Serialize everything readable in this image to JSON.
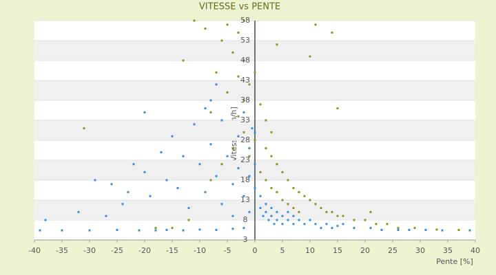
{
  "chart_data": {
    "type": "scatter",
    "title": "VITESSE vs PENTE",
    "x_label": "Pente [%]",
    "y_label": "Vitesse [km/h]",
    "xlim": [
      -40,
      40
    ],
    "xticks": [
      -40,
      -35,
      -30,
      -25,
      -20,
      -15,
      -10,
      -5,
      0,
      5,
      10,
      15,
      20,
      25,
      30,
      35,
      40
    ],
    "ylim": [
      3,
      58
    ],
    "yticks": [
      3,
      8,
      13,
      18,
      23,
      28,
      33,
      38,
      43,
      48,
      53,
      58
    ],
    "grid": true,
    "series": [
      {
        "color": "#3a8ee0",
        "x": [
          -39,
          -35,
          -30,
          -25,
          -21,
          -18,
          -16,
          -13,
          -10,
          -7,
          -4,
          -2,
          -38,
          -32,
          -29,
          -26,
          -24,
          -22,
          -20,
          -19,
          -17,
          -16,
          -15,
          -14,
          -13,
          -12,
          -11,
          -10,
          -9,
          -8,
          -8,
          -7,
          -6,
          -6,
          -5,
          -4,
          -4,
          -3,
          -3,
          -2,
          -2,
          -1,
          -1,
          -1,
          0,
          0,
          0,
          -0.5,
          1,
          1,
          1.5,
          2,
          2,
          2.5,
          3,
          3,
          3.5,
          4,
          4,
          5,
          5,
          6,
          6,
          7,
          7,
          8,
          9,
          10,
          11,
          12,
          13,
          14,
          15,
          16,
          18,
          21,
          23,
          26,
          28,
          31,
          34,
          39,
          -20,
          -23,
          -27,
          -5,
          -7,
          -9
        ],
        "values": [
          5.4,
          5.4,
          5.4,
          5.5,
          5.4,
          5.4,
          5.5,
          5.4,
          5.6,
          5.5,
          5.8,
          6,
          8,
          10,
          18,
          17,
          12,
          22,
          20,
          14,
          25,
          18,
          29,
          16,
          24,
          11,
          32,
          22,
          15,
          38,
          27,
          19,
          12,
          33,
          24,
          17,
          9,
          29,
          21,
          14,
          35,
          26,
          19,
          10,
          30,
          22,
          16,
          31,
          14,
          11,
          9,
          12,
          10,
          8,
          11,
          9,
          7,
          10,
          8,
          9,
          7,
          8,
          10,
          7,
          9,
          8,
          7,
          8,
          7,
          6,
          7,
          6,
          6.5,
          7,
          6,
          6,
          5.5,
          5.5,
          5.5,
          5.5,
          5.4,
          5.4,
          35,
          15,
          9,
          40,
          42,
          36
        ]
      },
      {
        "color": "#8f9420",
        "x": [
          -11,
          -9,
          -5,
          -3,
          -2,
          4,
          11,
          14,
          -13,
          -6,
          -4,
          -2,
          0,
          -1,
          -3,
          -7,
          -5,
          -2,
          1,
          2,
          3,
          -31,
          -8,
          10,
          15,
          0,
          2,
          3,
          4,
          5,
          6,
          7,
          8,
          9,
          10,
          11,
          12,
          13,
          14,
          15,
          16,
          18,
          20,
          22,
          24,
          21,
          26,
          29,
          33,
          37,
          1,
          2,
          3,
          4,
          5,
          6,
          7,
          8,
          -1,
          -2,
          -3,
          -4,
          -6,
          -8,
          -12,
          -15,
          -18
        ],
        "values": [
          58,
          56,
          57,
          55,
          58,
          52,
          57,
          55,
          48,
          53,
          50,
          48,
          45,
          42,
          44,
          45,
          40,
          38,
          37,
          33,
          30,
          31,
          35,
          49,
          36,
          28,
          26,
          24,
          22,
          20,
          18,
          16,
          15,
          14,
          13,
          12,
          11,
          10,
          10,
          9,
          9,
          8,
          8,
          7,
          7,
          10,
          6,
          6,
          5.6,
          5.5,
          20,
          18,
          16,
          15,
          13,
          12,
          11,
          10,
          24,
          30,
          34,
          26,
          22,
          18,
          8,
          6,
          6
        ]
      }
    ]
  }
}
